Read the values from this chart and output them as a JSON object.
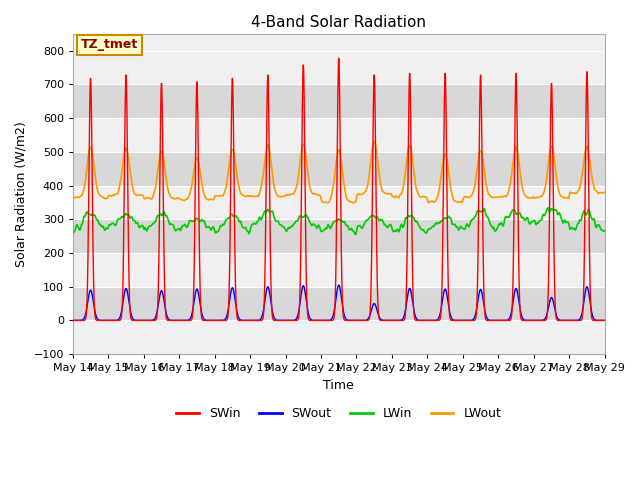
{
  "title": "4-Band Solar Radiation",
  "xlabel": "Time",
  "ylabel": "Solar Radiation (W/m2)",
  "ylim": [
    -100,
    850
  ],
  "yticks": [
    -100,
    0,
    100,
    200,
    300,
    400,
    500,
    600,
    700,
    800
  ],
  "start_day": 14,
  "end_day": 29,
  "n_days": 15,
  "colors": {
    "SWin": "#ff0000",
    "SWout": "#0000ff",
    "LWin": "#00cc00",
    "LWout": "#ff9900"
  },
  "legend_label": "TZ_tmet",
  "bg_color": "#ffffff",
  "plot_bg_light": "#f0f0f0",
  "plot_bg_dark": "#d8d8d8",
  "grid_color": "#ffffff"
}
